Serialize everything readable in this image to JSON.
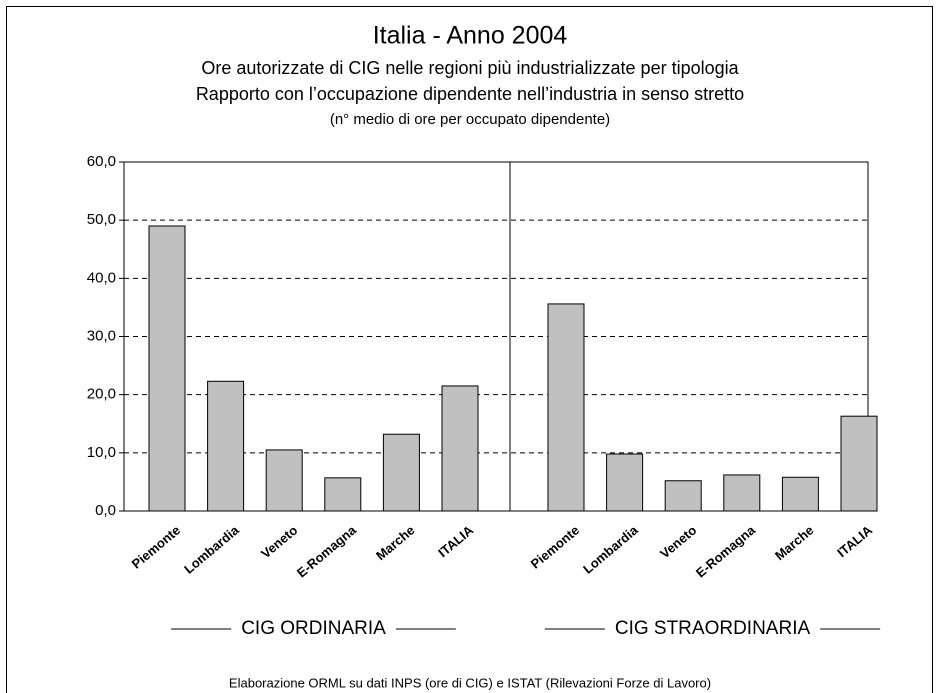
{
  "chart_data": {
    "type": "bar",
    "title": "Italia - Anno 2004",
    "subtitle": [
      "Ore autorizzate di CIG nelle regioni più industrializzate per tipologia",
      "Rapporto con l’occupazione dipendente nell’industria in senso stretto",
      "(n° medio di ore per occupato dipendente)"
    ],
    "groups": [
      {
        "name": "CIG ORDINARIA",
        "categories": [
          "Piemonte",
          "Lombardia",
          "Veneto",
          "E-Romagna",
          "Marche",
          "ITALIA"
        ],
        "values": [
          49.0,
          22.3,
          10.5,
          5.7,
          13.2,
          21.5
        ]
      },
      {
        "name": "CIG STRAORDINARIA",
        "categories": [
          "Piemonte",
          "Lombardia",
          "Veneto",
          "E-Romagna",
          "Marche",
          "ITALIA"
        ],
        "values": [
          35.6,
          9.8,
          5.2,
          6.2,
          5.8,
          16.3
        ]
      }
    ],
    "color": "#c0c0c0",
    "ylim": [
      0,
      60
    ],
    "yticks": [
      {
        "value": 0,
        "label": "0,0"
      },
      {
        "value": 10,
        "label": "10,0"
      },
      {
        "value": 20,
        "label": "20,0"
      },
      {
        "value": 30,
        "label": "30,0"
      },
      {
        "value": 40,
        "label": "40,0"
      },
      {
        "value": 50,
        "label": "50,0"
      },
      {
        "value": 60,
        "label": "60,0"
      }
    ],
    "grid": true,
    "source": "Elaborazione ORML su dati INPS (ore di CIG) e ISTAT (Rilevazioni Forze di Lavoro)"
  }
}
